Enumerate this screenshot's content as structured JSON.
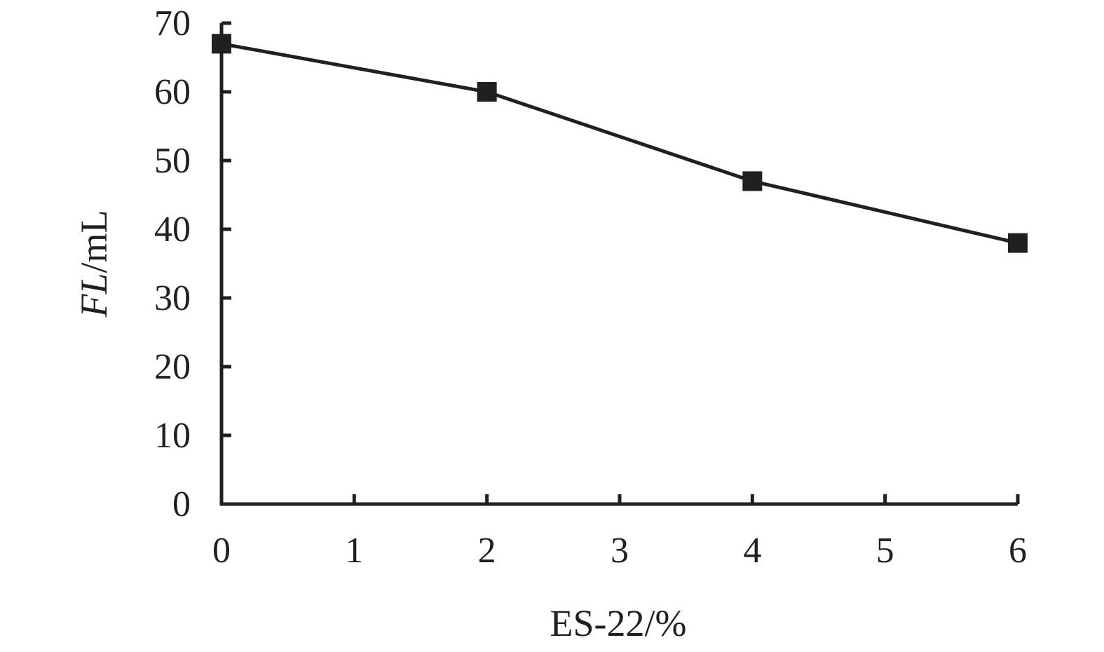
{
  "chart_data": {
    "type": "line",
    "title": "",
    "xlabel": "ES-22/%",
    "ylabel_italic": "FL",
    "ylabel_unit": "/mL",
    "xlim": [
      0,
      6
    ],
    "ylim": [
      0,
      70
    ],
    "xticks": [
      0,
      1,
      2,
      3,
      4,
      5,
      6
    ],
    "yticks": [
      0,
      10,
      20,
      30,
      40,
      50,
      60,
      70
    ],
    "grid": false,
    "legend": "none",
    "series": [
      {
        "marker": "square",
        "color": "#231f20",
        "points": [
          {
            "x": 0,
            "y": 67
          },
          {
            "x": 2,
            "y": 60
          },
          {
            "x": 4,
            "y": 47
          },
          {
            "x": 6,
            "y": 38
          }
        ]
      }
    ]
  }
}
